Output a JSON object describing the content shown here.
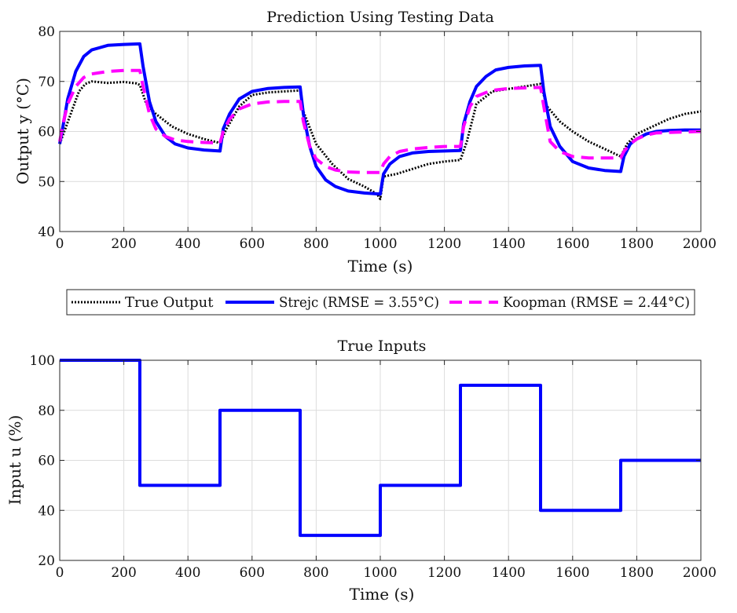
{
  "legend": {
    "entries": [
      {
        "label": "True Output",
        "color": "#000000",
        "style": "dotted"
      },
      {
        "label": "Strejc (RMSE = 3.55°C)",
        "color": "#0000ff",
        "style": "solid"
      },
      {
        "label": "Koopman (RMSE = 2.44°C)",
        "color": "#ff00ff",
        "style": "dashed"
      }
    ]
  },
  "chart_data": [
    {
      "type": "line",
      "title": "Prediction Using Testing Data",
      "xlabel": "Time (s)",
      "ylabel": "Output y (°C)",
      "xlim": [
        0,
        2000
      ],
      "ylim": [
        40,
        80
      ],
      "xticks": [
        0,
        200,
        400,
        600,
        800,
        1000,
        1200,
        1400,
        1600,
        1800,
        2000
      ],
      "yticks": [
        40,
        50,
        60,
        70,
        80
      ],
      "grid": true,
      "series": [
        {
          "name": "True Output",
          "color": "#000000",
          "style": "dotted",
          "x": [
            0,
            20,
            40,
            60,
            80,
            100,
            150,
            200,
            240,
            250,
            270,
            300,
            350,
            400,
            450,
            500,
            520,
            560,
            600,
            650,
            700,
            750,
            760,
            800,
            850,
            900,
            950,
            990,
            1000,
            1010,
            1050,
            1100,
            1150,
            1200,
            1250,
            1270,
            1300,
            1350,
            1400,
            1450,
            1500,
            1520,
            1560,
            1600,
            1650,
            1700,
            1750,
            1770,
            1800,
            1850,
            1900,
            1950,
            2000
          ],
          "y": [
            57.5,
            61,
            64.5,
            68,
            69.5,
            70,
            69.7,
            69.9,
            69.6,
            69.3,
            65.5,
            63.5,
            61,
            59.5,
            58.5,
            57.7,
            60.5,
            65,
            67.3,
            67.8,
            68,
            68.2,
            64,
            57.5,
            53.5,
            50.5,
            49,
            47.5,
            46.5,
            51,
            51.5,
            52.5,
            53.5,
            54,
            54.3,
            58,
            65.5,
            68,
            68.5,
            69,
            69.5,
            65,
            62,
            60,
            58,
            56.5,
            55,
            57.5,
            59.5,
            61,
            62.5,
            63.5,
            64
          ]
        },
        {
          "name": "Strejc (RMSE = 3.55°C)",
          "color": "#0000ff",
          "style": "solid",
          "x": [
            0,
            10,
            25,
            50,
            75,
            100,
            150,
            200,
            250,
            260,
            280,
            300,
            330,
            360,
            400,
            450,
            500,
            510,
            530,
            560,
            600,
            650,
            700,
            750,
            760,
            780,
            800,
            830,
            860,
            900,
            950,
            1000,
            1010,
            1030,
            1060,
            1100,
            1150,
            1200,
            1250,
            1260,
            1280,
            1300,
            1330,
            1360,
            1400,
            1450,
            1500,
            1510,
            1530,
            1560,
            1600,
            1650,
            1700,
            1750,
            1760,
            1780,
            1800,
            1830,
            1860,
            1900,
            1950,
            2000
          ],
          "y": [
            57.5,
            61,
            66.5,
            72,
            75,
            76.3,
            77.2,
            77.4,
            77.5,
            73,
            66,
            62,
            59,
            57.5,
            56.7,
            56.3,
            56.1,
            60.5,
            63.5,
            66.5,
            68,
            68.6,
            68.8,
            68.9,
            63.5,
            57,
            53,
            50.3,
            49,
            48.1,
            47.7,
            47.5,
            51.5,
            53.5,
            55,
            55.7,
            56,
            56.1,
            56.2,
            61.5,
            66,
            69,
            71,
            72.3,
            72.8,
            73.1,
            73.2,
            68,
            61,
            57,
            54,
            52.7,
            52.2,
            52,
            55,
            57.5,
            58.5,
            59.5,
            60,
            60.2,
            60.3,
            60.3
          ]
        },
        {
          "name": "Koopman (RMSE = 2.44°C)",
          "color": "#ff00ff",
          "style": "dashed",
          "x": [
            0,
            10,
            25,
            50,
            75,
            100,
            150,
            200,
            250,
            260,
            280,
            300,
            330,
            360,
            400,
            450,
            500,
            510,
            530,
            560,
            600,
            650,
            700,
            750,
            760,
            780,
            800,
            830,
            860,
            900,
            950,
            1000,
            1010,
            1030,
            1060,
            1100,
            1150,
            1200,
            1250,
            1260,
            1280,
            1300,
            1330,
            1360,
            1400,
            1450,
            1500,
            1510,
            1530,
            1560,
            1600,
            1650,
            1700,
            1750,
            1760,
            1780,
            1800,
            1830,
            1860,
            1900,
            1950,
            2000
          ],
          "y": [
            58,
            61.5,
            65.5,
            69,
            70.8,
            71.5,
            72,
            72.2,
            72.2,
            69,
            63.5,
            60.5,
            59,
            58.3,
            58,
            57.8,
            57.7,
            60,
            62.5,
            64.5,
            65.5,
            65.9,
            66,
            66,
            62,
            57,
            54.5,
            53,
            52.3,
            51.9,
            51.8,
            51.8,
            53.5,
            55,
            56,
            56.5,
            56.8,
            57,
            57,
            61,
            65,
            67,
            67.8,
            68.3,
            68.6,
            68.7,
            68.8,
            65,
            58,
            56,
            55,
            54.7,
            54.7,
            54.7,
            56,
            57.5,
            58.5,
            59.3,
            59.7,
            59.8,
            59.9,
            60
          ]
        }
      ]
    },
    {
      "type": "line",
      "title": "True Inputs",
      "xlabel": "Time (s)",
      "ylabel": "Input u (%)",
      "xlim": [
        0,
        2000
      ],
      "ylim": [
        20,
        100
      ],
      "xticks": [
        0,
        200,
        400,
        600,
        800,
        1000,
        1200,
        1400,
        1600,
        1800,
        2000
      ],
      "yticks": [
        20,
        40,
        60,
        80,
        100
      ],
      "grid": true,
      "series": [
        {
          "color": "#0000ff",
          "style": "step",
          "x": [
            0,
            250,
            250,
            500,
            500,
            750,
            750,
            1000,
            1000,
            1250,
            1250,
            1500,
            1500,
            1750,
            1750,
            2000
          ],
          "y": [
            100,
            100,
            50,
            50,
            80,
            80,
            30,
            30,
            50,
            50,
            90,
            90,
            40,
            40,
            60,
            60
          ]
        }
      ]
    }
  ]
}
